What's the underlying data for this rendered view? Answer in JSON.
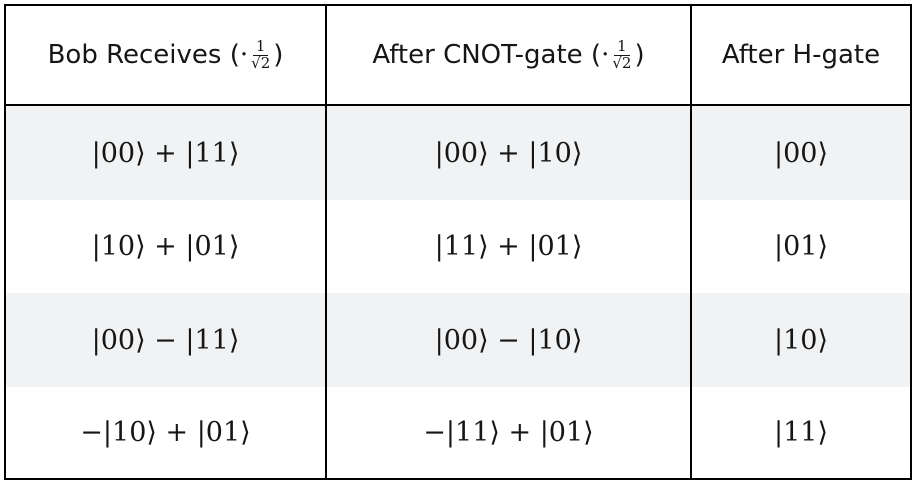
{
  "headers": [
    {
      "label": "Bob Receives",
      "factor": {
        "open": "(",
        "dot": "·",
        "numerator": "1",
        "denominator": "√2",
        "close": ")"
      }
    },
    {
      "label": "After CNOT-gate",
      "factor": {
        "open": "(",
        "dot": "·",
        "numerator": "1",
        "denominator": "√2",
        "close": ")"
      }
    },
    {
      "label": "After H-gate"
    }
  ],
  "rows": [
    {
      "received": "|00⟩ + |11⟩",
      "after_cnot": "|00⟩ + |10⟩",
      "after_h": "|00⟩"
    },
    {
      "received": "|10⟩ + |01⟩",
      "after_cnot": "|11⟩ + |01⟩",
      "after_h": "|01⟩"
    },
    {
      "received": "|00⟩ − |11⟩",
      "after_cnot": "|00⟩ − |10⟩",
      "after_h": "|10⟩"
    },
    {
      "received": "−|10⟩ + |01⟩",
      "after_cnot": "−|11⟩ + |01⟩",
      "after_h": "|11⟩"
    }
  ],
  "colors": {
    "border": "#000000",
    "shaded_row": "#f0f2f4",
    "plain_row": "#ffffff",
    "text": "#161616"
  }
}
